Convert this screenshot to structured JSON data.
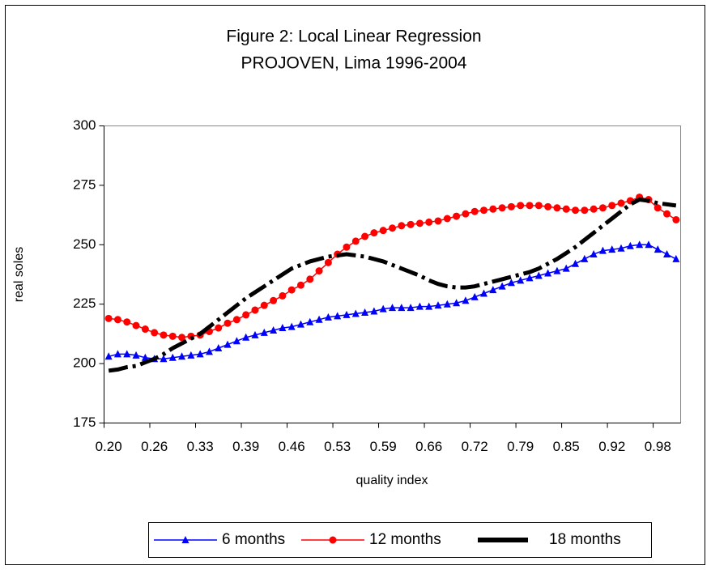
{
  "chart_data": {
    "type": "line",
    "title": "Figure 2: Local Linear Regression",
    "subtitle": "PROJOVEN, Lima 1996-2004",
    "x_label": "quality index",
    "y_label": "real soles",
    "categories": [
      "0.20",
      null,
      null,
      null,
      null,
      "0.26",
      null,
      null,
      null,
      null,
      "0.33",
      null,
      null,
      null,
      null,
      "0.39",
      null,
      null,
      null,
      null,
      "0.46",
      null,
      null,
      null,
      null,
      "0.53",
      null,
      null,
      null,
      null,
      "0.59",
      null,
      null,
      null,
      null,
      "0.66",
      null,
      null,
      null,
      null,
      "0.72",
      null,
      null,
      null,
      null,
      "0.79",
      null,
      null,
      null,
      null,
      "0.85",
      null,
      null,
      null,
      null,
      "0.92",
      null,
      null,
      null,
      null,
      "0.98",
      null,
      null
    ],
    "series": [
      {
        "name": "6 months",
        "color": "#0000ff",
        "marker": "triangle",
        "style": "solid",
        "values": [
          203,
          204,
          204,
          203.5,
          202.5,
          202,
          202,
          202.5,
          203,
          203.5,
          204,
          205,
          206.5,
          208,
          209.5,
          211,
          212,
          213,
          214,
          215,
          215.5,
          216.5,
          217.5,
          218.5,
          219.5,
          220,
          220.5,
          221,
          221.5,
          222,
          223,
          223.5,
          223.5,
          223.5,
          224,
          224,
          224.5,
          225,
          225.5,
          226.5,
          228,
          229.5,
          231,
          232.5,
          234,
          235,
          236,
          237,
          238,
          239,
          240,
          242,
          244,
          246,
          247.5,
          248,
          248.5,
          249.5,
          250,
          250,
          248,
          246,
          244
        ]
      },
      {
        "name": "12 months",
        "color": "#ff0000",
        "marker": "circle",
        "style": "solid",
        "values": [
          219,
          218.5,
          217.5,
          216,
          214.5,
          213,
          212,
          211.5,
          211,
          211.5,
          212,
          213.5,
          215,
          217,
          218.5,
          220.5,
          222.5,
          224.5,
          226.5,
          228.5,
          231,
          233,
          235.5,
          239,
          242.5,
          246,
          249,
          251.5,
          253.5,
          255,
          256,
          257,
          258,
          258.5,
          259,
          259.5,
          260,
          261,
          262,
          263,
          264,
          264.5,
          265,
          265.5,
          266,
          266.5,
          266.5,
          266.5,
          266,
          265.5,
          265,
          264.5,
          264.5,
          265,
          265.5,
          266.5,
          267.5,
          268.5,
          270,
          269,
          265.5,
          263,
          260.5
        ]
      },
      {
        "name": "18 months",
        "color": "#000000",
        "marker": "none",
        "style": "dashdot",
        "values": [
          197,
          197.5,
          198.5,
          199,
          200.5,
          202,
          204,
          206.5,
          208.5,
          210.5,
          212.5,
          215.5,
          218.5,
          221.5,
          224.5,
          227.5,
          230,
          232.5,
          235,
          237.5,
          240,
          241.5,
          243,
          244,
          245,
          245.5,
          246,
          245.5,
          245,
          244,
          243,
          241.5,
          240,
          238.5,
          237,
          235,
          233.5,
          232.5,
          232,
          232,
          232.5,
          233.5,
          234.5,
          235.5,
          236.5,
          237.5,
          238.5,
          240,
          242,
          244,
          246.5,
          249,
          252,
          255,
          258,
          261,
          264,
          267,
          269,
          268.5,
          267.5,
          267,
          266.5
        ]
      }
    ],
    "ylim": [
      175,
      300
    ],
    "yticks": [
      175,
      200,
      225,
      250,
      275,
      300
    ],
    "grid": false,
    "legend": "bottom"
  }
}
